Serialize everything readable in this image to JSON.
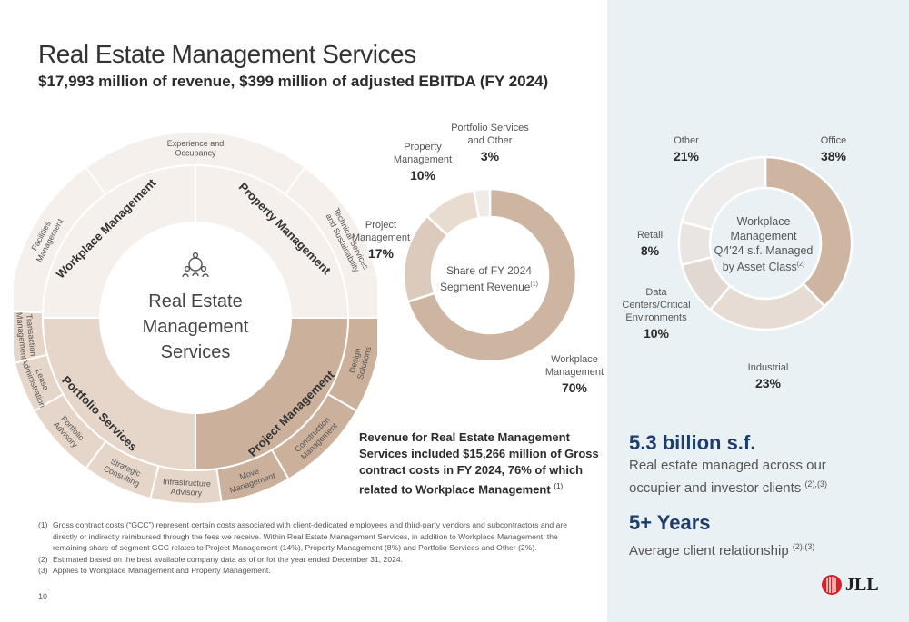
{
  "page": {
    "title": "Real Estate Management Services",
    "subtitle": "$17,993 million of revenue, $399 million of adjusted EBITDA (FY 2024)",
    "page_number": "10",
    "logo_text": "JLL"
  },
  "wheel": {
    "center_lines": [
      "Real Estate",
      "Management",
      "Services"
    ],
    "center_icon": "people-network-icon",
    "inner": [
      {
        "label": "Workplace Management"
      },
      {
        "label": "Property Management"
      },
      {
        "label": "Project Management"
      },
      {
        "label": "Portfolio Services"
      }
    ],
    "outer": [
      {
        "lines": [
          "Experience and",
          "Occupancy"
        ]
      },
      {
        "lines": [
          "Technical Services",
          "and Sustainability"
        ]
      },
      {
        "lines": [
          "Design",
          "Solutions"
        ]
      },
      {
        "lines": [
          "Construction",
          "Management"
        ]
      },
      {
        "lines": [
          "Move",
          "Management"
        ]
      },
      {
        "lines": [
          "Infrastructure",
          "Advisory"
        ]
      },
      {
        "lines": [
          "Strategic",
          "Consulting"
        ]
      },
      {
        "lines": [
          "Portfolio",
          "Advisory"
        ]
      },
      {
        "lines": [
          "Lease",
          "Administration"
        ]
      },
      {
        "lines": [
          "Transaction",
          "Management"
        ]
      },
      {
        "lines": [
          "Facilities",
          "Management"
        ]
      }
    ]
  },
  "chart_data": [
    {
      "type": "pie",
      "center_label": "Share of FY 2024 Segment Revenue",
      "center_sup": "(1)",
      "slices": [
        {
          "name": "Workplace Management",
          "value": 70,
          "label": "70%",
          "color": "#cdb5a1"
        },
        {
          "name": "Project Management",
          "value": 17,
          "label": "17%",
          "color": "#dccbbd"
        },
        {
          "name": "Property Management",
          "value": 10,
          "label": "10%",
          "color": "#e8dbd0"
        },
        {
          "name": "Portfolio Services and Other",
          "value": 3,
          "label": "3%",
          "color": "#f1ebe5"
        }
      ]
    },
    {
      "type": "pie",
      "center_label": "Workplace Management Q4'24 s.f. Managed by Asset Class",
      "center_sup": "(2)",
      "slices": [
        {
          "name": "Office",
          "value": 38,
          "label": "38%",
          "color": "#cdb5a1"
        },
        {
          "name": "Industrial",
          "value": 23,
          "label": "23%",
          "color": "#e6dcd3"
        },
        {
          "name": "Data Centers/Critical Environments",
          "value": 10,
          "label": "10%",
          "color": "#e0d8d1"
        },
        {
          "name": "Retail",
          "value": 8,
          "label": "8%",
          "color": "#e8e5e2"
        },
        {
          "name": "Other",
          "value": 21,
          "label": "21%",
          "color": "#eeedec"
        }
      ]
    }
  ],
  "labels": {
    "rev_pct_workplace": "70%",
    "rev_lbl_workplace": [
      "Workplace",
      "Management"
    ],
    "rev_pct_project": "17%",
    "rev_lbl_project": [
      "Project",
      "Management"
    ],
    "rev_pct_property": "10%",
    "rev_lbl_property": [
      "Property",
      "Management"
    ],
    "rev_pct_portfolio": "3%",
    "rev_lbl_portfolio": [
      "Portfolio Services",
      "and Other"
    ],
    "ac_pct_office": "38%",
    "ac_lbl_office": "Office",
    "ac_pct_industrial": "23%",
    "ac_lbl_industrial": "Industrial",
    "ac_pct_dc": "10%",
    "ac_lbl_dc": [
      "Data",
      "Centers/Critical",
      "Environments"
    ],
    "ac_pct_retail": "8%",
    "ac_lbl_retail": "Retail",
    "ac_pct_other": "21%",
    "ac_lbl_other": "Other",
    "rev_center": [
      "Share of FY 2024",
      "Segment Revenue"
    ],
    "ac_center": [
      "Workplace",
      "Management",
      "Q4'24 s.f. Managed",
      "by Asset Class"
    ]
  },
  "revenue_note": {
    "text": "Revenue for Real Estate Management Services included $15,266 million of Gross contract costs in FY 2024, 76% of which related to Workplace Management",
    "sup": "(1)"
  },
  "stats": {
    "sf_value": "5.3 billion s.f.",
    "sf_desc_1": "Real estate managed across our",
    "sf_desc_2": "occupier and investor clients",
    "sf_sup": "(2),(3)",
    "years_value": "5+ Years",
    "years_desc": "Average client relationship",
    "years_sup": "(2),(3)"
  },
  "footnotes": [
    {
      "num": "(1)",
      "text": "Gross contract costs (“GCC”) represent certain costs associated with client-dedicated employees and third-party vendors and subcontractors and are directly or indirectly reimbursed through the fees we receive. Within Real Estate Management Services, in addition to Workplace Management, the remaining share of segment GCC relates to Project Management (14%), Property Management (8%) and Portfolio Services and Other (2%)."
    },
    {
      "num": "(2)",
      "text": "Estimated based on the best available company data as of or for the year ended December 31, 2024."
    },
    {
      "num": "(3)",
      "text": "Applies to Workplace Management and Property Management."
    }
  ],
  "colors": {
    "panel": "#e9f1f4",
    "stat_blue": "#1f3d6b",
    "wheel_light": "#f5f0ec",
    "wheel_mid": "#e6d6c9",
    "wheel_dark": "#cbb09b",
    "logo_red": "#d2232a"
  }
}
